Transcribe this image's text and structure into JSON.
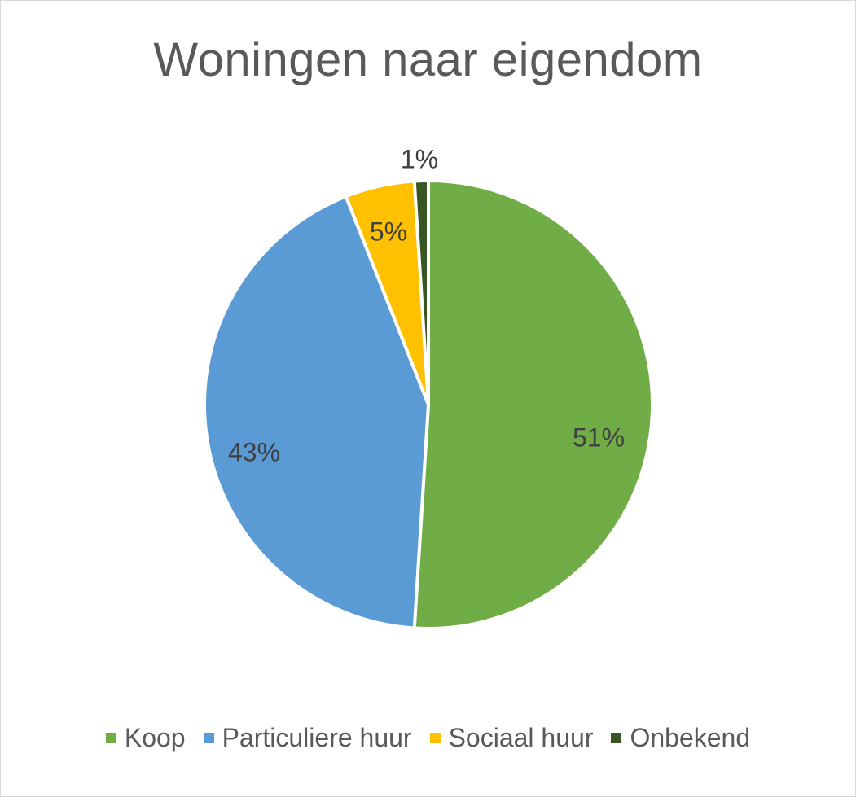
{
  "chart_data": {
    "type": "pie",
    "title": "Woningen naar eigendom",
    "categories": [
      "Koop",
      "Particuliere huur",
      "Sociaal huur",
      "Onbekend"
    ],
    "values": [
      51,
      43,
      5,
      1
    ],
    "labels": [
      "51%",
      "43%",
      "5%",
      "1%"
    ],
    "colors": [
      "#70ad47",
      "#5b9bd5",
      "#ffc000",
      "#375623"
    ],
    "legend_position": "bottom"
  }
}
